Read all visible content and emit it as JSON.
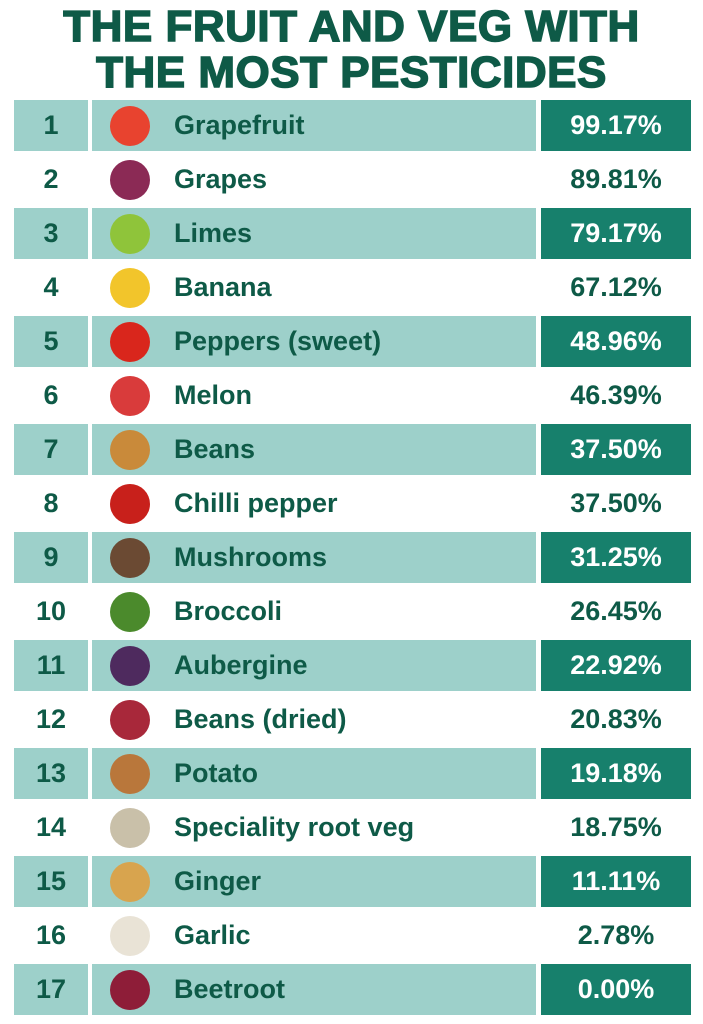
{
  "header": {
    "title_lines": [
      "THE FRUIT AND VEG WITH",
      "THE MOST PESTICIDES"
    ]
  },
  "table": {
    "rows": [
      [
        "1",
        "Grapefruit",
        "99.17%"
      ],
      [
        "2",
        "Grapes",
        "89.81%"
      ],
      [
        "3",
        "Limes",
        "79.17%"
      ],
      [
        "4",
        "Banana",
        "67.12%"
      ],
      [
        "5",
        "Peppers (sweet)",
        "48.96%"
      ],
      [
        "6",
        "Melon",
        "46.39%"
      ],
      [
        "7",
        "Beans",
        "37.50%"
      ],
      [
        "8",
        "Chilli pepper",
        "37.50%"
      ],
      [
        "9",
        "Mushrooms",
        "31.25%"
      ],
      [
        "10",
        "Broccoli",
        "26.45%"
      ],
      [
        "11",
        "Aubergine",
        "22.92%"
      ],
      [
        "12",
        "Beans (dried)",
        "20.83%"
      ],
      [
        "13",
        "Potato",
        "19.18%"
      ],
      [
        "14",
        "Speciality root veg",
        "18.75%"
      ],
      [
        "15",
        "Ginger",
        "11.11%"
      ],
      [
        "16",
        "Garlic",
        "2.78%"
      ],
      [
        "17",
        "Beetroot",
        "0.00%"
      ]
    ]
  }
}
